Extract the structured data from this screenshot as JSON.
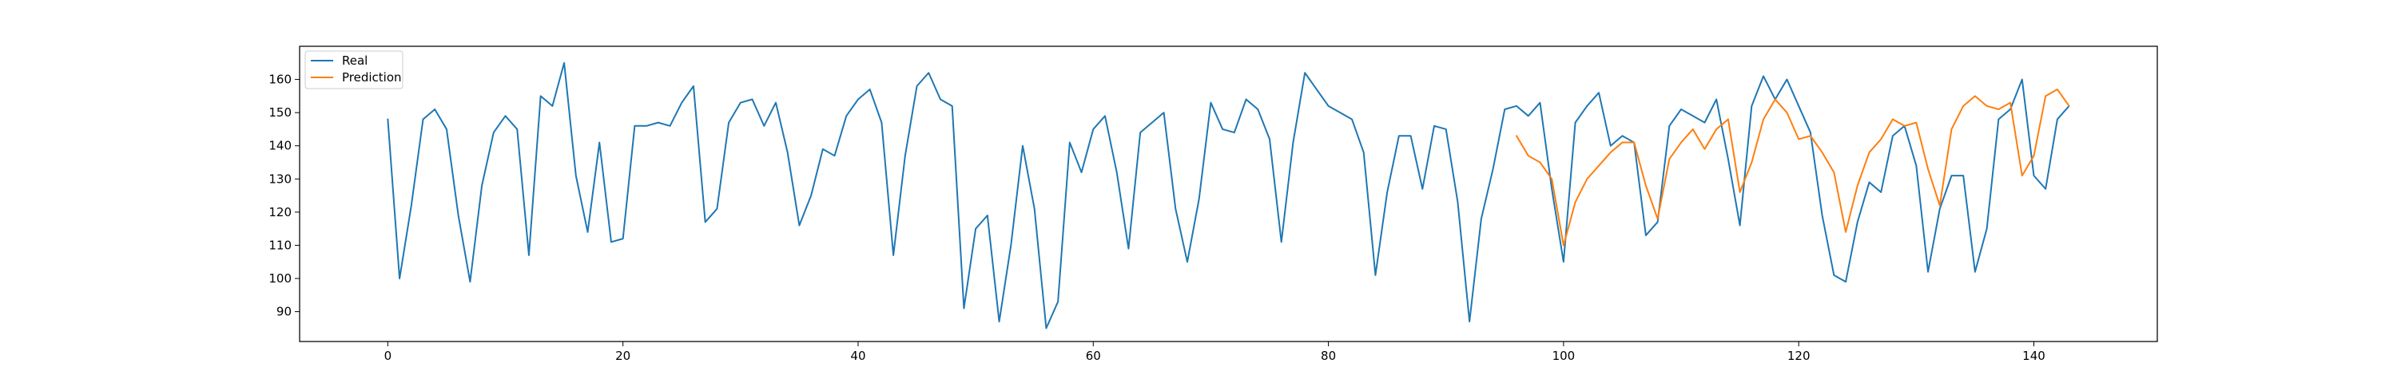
{
  "chart_data": {
    "type": "line",
    "title": "",
    "xlabel": "",
    "ylabel": "",
    "xlim": [
      -7.5,
      150.5
    ],
    "ylim": [
      81,
      170
    ],
    "xticks": [
      0,
      20,
      40,
      60,
      80,
      100,
      120,
      140
    ],
    "yticks": [
      90,
      100,
      110,
      120,
      130,
      140,
      150,
      160
    ],
    "grid": false,
    "legend_position": "top-left",
    "series": [
      {
        "name": "Real",
        "color": "#1f77b4",
        "x_start": 0,
        "values": [
          148,
          100,
          122,
          148,
          151,
          145,
          119,
          99,
          128,
          144,
          149,
          145,
          107,
          155,
          152,
          165,
          131,
          114,
          141,
          111,
          112,
          146,
          146,
          147,
          146,
          153,
          158,
          117,
          121,
          147,
          153,
          154,
          146,
          153,
          138,
          116,
          125,
          139,
          137,
          149,
          154,
          157,
          147,
          107,
          137,
          158,
          162,
          154,
          152,
          91,
          115,
          119,
          87,
          110,
          140,
          121,
          85,
          93,
          141,
          132,
          145,
          149,
          132,
          109,
          144,
          147,
          150,
          121,
          105,
          124,
          153,
          145,
          144,
          154,
          151,
          142,
          111,
          141,
          162,
          157,
          152,
          150,
          148,
          138,
          101,
          126,
          143,
          143,
          127,
          146,
          145,
          123,
          87,
          118,
          133,
          151,
          152,
          149,
          153,
          127,
          105,
          147,
          152,
          156,
          140,
          143,
          141,
          113,
          117,
          146,
          151,
          149,
          147,
          154,
          136,
          116,
          152,
          161,
          154,
          160,
          152,
          144,
          119,
          101,
          99,
          117,
          129,
          126,
          143,
          146,
          134,
          102,
          121,
          131,
          131,
          102,
          115,
          148,
          151,
          160,
          131,
          127,
          148,
          152
        ]
      },
      {
        "name": "Prediction",
        "color": "#ff7f0e",
        "x_start": 96,
        "values": [
          143,
          137,
          135,
          130,
          110,
          123,
          130,
          134,
          138,
          141,
          141,
          128,
          118,
          136,
          141,
          145,
          139,
          145,
          148,
          126,
          135,
          148,
          154,
          150,
          142,
          143,
          138,
          132,
          114,
          128,
          138,
          142,
          148,
          146,
          147,
          133,
          122,
          145,
          152,
          155,
          152,
          151,
          153,
          131,
          137,
          155,
          157,
          152
        ]
      }
    ]
  }
}
